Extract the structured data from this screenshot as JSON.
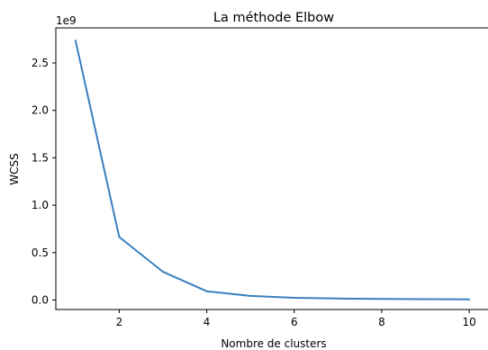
{
  "chart_data": {
    "type": "line",
    "title": "La méthode Elbow",
    "xlabel": "Nombre de clusters",
    "ylabel": "WCSS",
    "y_offset_label": "1e9",
    "x": [
      1,
      2,
      3,
      4,
      5,
      6,
      7,
      8,
      9,
      10
    ],
    "series": [
      {
        "values": [
          2.735,
          0.665,
          0.298,
          0.093,
          0.043,
          0.023,
          0.016,
          0.011,
          0.009,
          0.007
        ]
      }
    ],
    "xlim": [
      0.55,
      10.45
    ],
    "ylim": [
      -0.1,
      2.87
    ],
    "xticks": [
      {
        "value": 2,
        "label": "2"
      },
      {
        "value": 4,
        "label": "4"
      },
      {
        "value": 6,
        "label": "6"
      },
      {
        "value": 8,
        "label": "8"
      },
      {
        "value": 10,
        "label": "10"
      }
    ],
    "yticks": [
      {
        "value": 0.0,
        "label": "0.0"
      },
      {
        "value": 0.5,
        "label": "0.5"
      },
      {
        "value": 1.0,
        "label": "1.0"
      },
      {
        "value": 1.5,
        "label": "1.5"
      },
      {
        "value": 2.0,
        "label": "2.0"
      },
      {
        "value": 2.5,
        "label": "2.5"
      }
    ],
    "grid": false,
    "line_color": "#3a80bd"
  }
}
